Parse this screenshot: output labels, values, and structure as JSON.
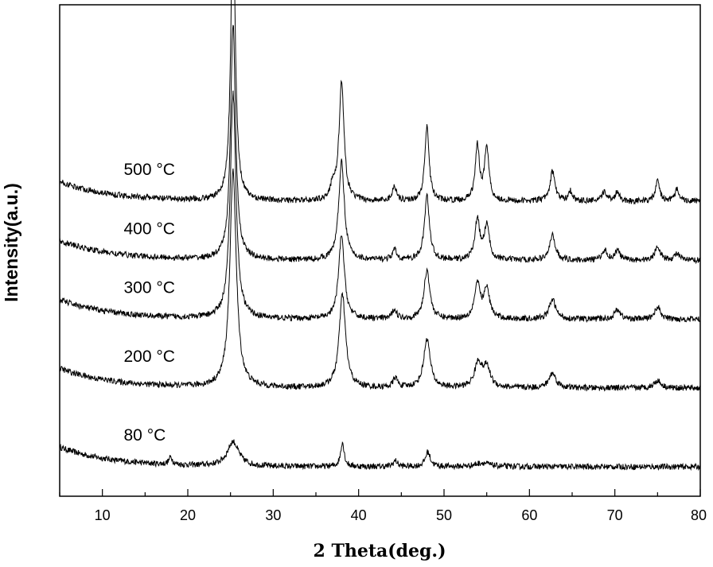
{
  "chart_data": {
    "type": "line",
    "title": "",
    "xlabel": "2  Theta(deg.)",
    "ylabel": "Intensity(a.u.)",
    "xlim": [
      5,
      80
    ],
    "xticks": [
      10,
      20,
      30,
      40,
      50,
      60,
      70,
      80
    ],
    "grid": false,
    "legend": "none",
    "series": [
      {
        "name": "80 °C",
        "baseline": 0.06,
        "peaks": [
          [
            25.3,
            0.05,
            0.8
          ],
          [
            38.1,
            0.05,
            0.25
          ],
          [
            48.1,
            0.03,
            0.35
          ],
          [
            18.0,
            0.015,
            0.25
          ],
          [
            44.3,
            0.012,
            0.3
          ],
          [
            54.5,
            0.008,
            1.0
          ]
        ]
      },
      {
        "name": "200 °C",
        "baseline": 0.22,
        "peaks": [
          [
            25.3,
            0.44,
            0.45
          ],
          [
            38.1,
            0.19,
            0.45
          ],
          [
            48.0,
            0.1,
            0.45
          ],
          [
            54.0,
            0.05,
            0.5
          ],
          [
            55.0,
            0.04,
            0.5
          ],
          [
            62.7,
            0.03,
            0.5
          ],
          [
            44.3,
            0.02,
            0.3
          ],
          [
            75.0,
            0.015,
            0.5
          ]
        ]
      },
      {
        "name": "300 °C",
        "baseline": 0.36,
        "peaks": [
          [
            25.3,
            0.46,
            0.4
          ],
          [
            38.0,
            0.17,
            0.4
          ],
          [
            48.0,
            0.1,
            0.4
          ],
          [
            53.9,
            0.07,
            0.4
          ],
          [
            55.0,
            0.06,
            0.4
          ],
          [
            62.7,
            0.04,
            0.45
          ],
          [
            44.2,
            0.02,
            0.3
          ],
          [
            70.3,
            0.02,
            0.4
          ],
          [
            75.0,
            0.025,
            0.4
          ]
        ]
      },
      {
        "name": "400 °C",
        "baseline": 0.48,
        "peaks": [
          [
            25.3,
            0.48,
            0.35
          ],
          [
            38.0,
            0.2,
            0.4
          ],
          [
            48.0,
            0.13,
            0.35
          ],
          [
            53.9,
            0.08,
            0.35
          ],
          [
            55.0,
            0.07,
            0.35
          ],
          [
            62.7,
            0.05,
            0.4
          ],
          [
            44.2,
            0.02,
            0.3
          ],
          [
            68.8,
            0.02,
            0.35
          ],
          [
            70.3,
            0.02,
            0.35
          ],
          [
            75.0,
            0.03,
            0.35
          ],
          [
            77.3,
            0.015,
            0.3
          ]
        ]
      },
      {
        "name": "500 °C",
        "baseline": 0.6,
        "peaks": [
          [
            25.3,
            0.61,
            0.3
          ],
          [
            38.0,
            0.24,
            0.35
          ],
          [
            37.0,
            0.03,
            0.3
          ],
          [
            48.0,
            0.15,
            0.3
          ],
          [
            53.9,
            0.11,
            0.3
          ],
          [
            55.0,
            0.11,
            0.3
          ],
          [
            62.7,
            0.06,
            0.35
          ],
          [
            44.2,
            0.03,
            0.3
          ],
          [
            64.8,
            0.02,
            0.3
          ],
          [
            68.8,
            0.02,
            0.3
          ],
          [
            70.3,
            0.02,
            0.3
          ],
          [
            75.0,
            0.04,
            0.3
          ],
          [
            77.3,
            0.025,
            0.3
          ]
        ]
      }
    ]
  }
}
